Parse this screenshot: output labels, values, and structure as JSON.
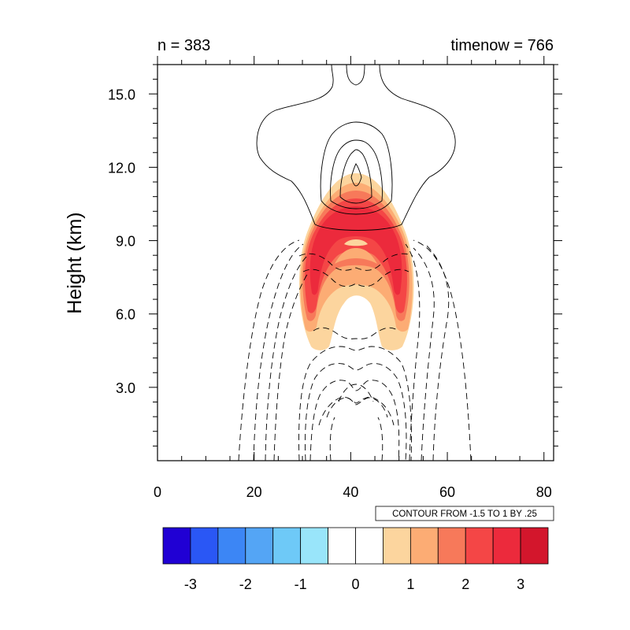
{
  "chart_data": {
    "type": "heatmap",
    "title_left": "n = 383",
    "title_right": "timenow = 766",
    "ylabel": "Height (km)",
    "xlabel": "",
    "xlim": [
      0,
      82
    ],
    "ylim": [
      0,
      16.2
    ],
    "x_ticks": [
      0,
      20,
      40,
      60,
      80
    ],
    "x_tick_labels": [
      "0",
      "20",
      "40",
      "60",
      "80"
    ],
    "y_ticks": [
      3,
      6,
      9,
      12,
      15
    ],
    "y_tick_labels": [
      "3.0",
      "6.0",
      "9.0",
      "12.0",
      "15.0"
    ],
    "info_label": "CONTOUR FROM -1.5 TO 1 BY .25",
    "colorbar": {
      "colors": [
        "#2000d4",
        "#2a57f5",
        "#3c86f5",
        "#54a5f5",
        "#6ec9f7",
        "#99e5fa",
        "#ffffff",
        "#ffffff",
        "#fcd59e",
        "#fcac74",
        "#f7795a",
        "#f44646",
        "#ec2a3c",
        "#d3162c"
      ],
      "labels": [
        "-3",
        "-2",
        "-1",
        "0",
        "1",
        "2",
        "3"
      ],
      "label_values": [
        -3,
        -2,
        -1,
        0,
        1,
        2,
        3
      ],
      "levels": [
        -3.5,
        -3,
        -2.5,
        -2,
        -1.5,
        -1,
        -0.5,
        0,
        0.5,
        1,
        1.5,
        2,
        2.5,
        3,
        3.5
      ]
    },
    "shaded_field": {
      "description_levels": "filled contours of a thermal bubble",
      "center_x": 41,
      "rings": [
        {
          "level": 0.5,
          "color": "#fcd59e"
        },
        {
          "level": 1.0,
          "color": "#fcac74"
        },
        {
          "level": 1.5,
          "color": "#f7795a"
        },
        {
          "level": 2.0,
          "color": "#f44646"
        },
        {
          "level": 2.5,
          "color": "#ec2a3c"
        }
      ]
    },
    "line_contours": {
      "min": -1.5,
      "max": 1,
      "interval": 0.25,
      "negative_style": "dashed",
      "positive_style": "solid"
    }
  }
}
